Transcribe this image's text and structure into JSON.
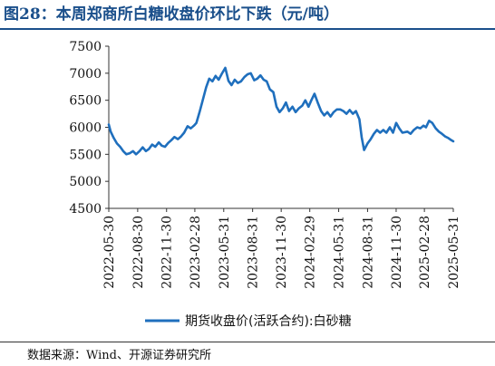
{
  "figure": {
    "title": "图28：本周郑商所白糖收盘价环比下跌（元/吨）",
    "source": "数据来源：Wind、开源证券研究所"
  },
  "colors": {
    "title": "#1a4f8b",
    "series": "#1f6fbd",
    "axis": "#333333"
  },
  "chart_data": {
    "type": "line",
    "title": "",
    "xlabel": "",
    "ylabel": "",
    "ylim": [
      4500,
      7500
    ],
    "yticks": [
      4500,
      5000,
      5500,
      6000,
      6500,
      7000,
      7500
    ],
    "ytick_labels": [
      "4500",
      "5000",
      "5500",
      "6000",
      "6500",
      "7000",
      "7500"
    ],
    "xlim": [
      "2022-05-30",
      "2025-05-31"
    ],
    "xtick_labels": [
      "2022-05-30",
      "2022-08-30",
      "2022-11-30",
      "2023-02-28",
      "2023-05-31",
      "2023-08-31",
      "2023-11-30",
      "2024-02-29",
      "2024-05-31",
      "2024-08-31",
      "2024-11-30",
      "2025-02-28",
      "2025-05-31"
    ],
    "grid": false,
    "legend_position": "bottom",
    "series": [
      {
        "name": "期货收盘价(活跃合约):白砂糖",
        "points": [
          [
            "2022-05-30",
            6050
          ],
          [
            "2022-06-05",
            5920
          ],
          [
            "2022-06-15",
            5800
          ],
          [
            "2022-06-25",
            5700
          ],
          [
            "2022-07-05",
            5640
          ],
          [
            "2022-07-15",
            5560
          ],
          [
            "2022-07-25",
            5500
          ],
          [
            "2022-08-05",
            5520
          ],
          [
            "2022-08-15",
            5560
          ],
          [
            "2022-08-25",
            5500
          ],
          [
            "2022-09-05",
            5560
          ],
          [
            "2022-09-15",
            5630
          ],
          [
            "2022-09-25",
            5560
          ],
          [
            "2022-10-05",
            5600
          ],
          [
            "2022-10-15",
            5680
          ],
          [
            "2022-10-25",
            5640
          ],
          [
            "2022-11-05",
            5720
          ],
          [
            "2022-11-15",
            5660
          ],
          [
            "2022-11-25",
            5640
          ],
          [
            "2022-12-05",
            5710
          ],
          [
            "2022-12-15",
            5760
          ],
          [
            "2022-12-25",
            5820
          ],
          [
            "2023-01-05",
            5780
          ],
          [
            "2023-01-15",
            5830
          ],
          [
            "2023-01-25",
            5900
          ],
          [
            "2023-02-05",
            6020
          ],
          [
            "2023-02-15",
            5980
          ],
          [
            "2023-02-25",
            6030
          ],
          [
            "2023-03-05",
            6080
          ],
          [
            "2023-03-15",
            6280
          ],
          [
            "2023-03-25",
            6500
          ],
          [
            "2023-04-05",
            6740
          ],
          [
            "2023-04-15",
            6900
          ],
          [
            "2023-04-25",
            6850
          ],
          [
            "2023-05-05",
            6950
          ],
          [
            "2023-05-15",
            6880
          ],
          [
            "2023-05-25",
            6990
          ],
          [
            "2023-06-05",
            7100
          ],
          [
            "2023-06-15",
            6860
          ],
          [
            "2023-06-25",
            6780
          ],
          [
            "2023-07-05",
            6880
          ],
          [
            "2023-07-15",
            6820
          ],
          [
            "2023-07-25",
            6850
          ],
          [
            "2023-08-05",
            6930
          ],
          [
            "2023-08-15",
            6980
          ],
          [
            "2023-08-25",
            7000
          ],
          [
            "2023-09-05",
            6870
          ],
          [
            "2023-09-15",
            6900
          ],
          [
            "2023-09-25",
            6960
          ],
          [
            "2023-10-05",
            6880
          ],
          [
            "2023-10-15",
            6850
          ],
          [
            "2023-10-25",
            6700
          ],
          [
            "2023-11-05",
            6650
          ],
          [
            "2023-11-15",
            6380
          ],
          [
            "2023-11-25",
            6280
          ],
          [
            "2023-12-05",
            6350
          ],
          [
            "2023-12-15",
            6460
          ],
          [
            "2023-12-25",
            6300
          ],
          [
            "2024-01-05",
            6380
          ],
          [
            "2024-01-15",
            6280
          ],
          [
            "2024-01-25",
            6350
          ],
          [
            "2024-02-05",
            6400
          ],
          [
            "2024-02-15",
            6500
          ],
          [
            "2024-02-25",
            6380
          ],
          [
            "2024-03-05",
            6500
          ],
          [
            "2024-03-15",
            6620
          ],
          [
            "2024-03-25",
            6460
          ],
          [
            "2024-04-05",
            6300
          ],
          [
            "2024-04-15",
            6220
          ],
          [
            "2024-04-25",
            6280
          ],
          [
            "2024-05-05",
            6200
          ],
          [
            "2024-05-15",
            6280
          ],
          [
            "2024-05-25",
            6330
          ],
          [
            "2024-06-05",
            6330
          ],
          [
            "2024-06-15",
            6300
          ],
          [
            "2024-06-25",
            6250
          ],
          [
            "2024-07-05",
            6320
          ],
          [
            "2024-07-15",
            6250
          ],
          [
            "2024-07-25",
            6300
          ],
          [
            "2024-08-05",
            6150
          ],
          [
            "2024-08-12",
            5820
          ],
          [
            "2024-08-20",
            5580
          ],
          [
            "2024-08-31",
            5700
          ],
          [
            "2024-09-10",
            5780
          ],
          [
            "2024-09-20",
            5880
          ],
          [
            "2024-09-30",
            5950
          ],
          [
            "2024-10-10",
            5900
          ],
          [
            "2024-10-20",
            5950
          ],
          [
            "2024-10-30",
            5900
          ],
          [
            "2024-11-10",
            6000
          ],
          [
            "2024-11-20",
            5900
          ],
          [
            "2024-11-30",
            6080
          ],
          [
            "2024-12-10",
            5980
          ],
          [
            "2024-12-20",
            5900
          ],
          [
            "2025-01-05",
            5920
          ],
          [
            "2025-01-15",
            5880
          ],
          [
            "2025-01-25",
            5950
          ],
          [
            "2025-02-05",
            6000
          ],
          [
            "2025-02-15",
            5980
          ],
          [
            "2025-02-25",
            6030
          ],
          [
            "2025-03-05",
            6000
          ],
          [
            "2025-03-15",
            6120
          ],
          [
            "2025-03-25",
            6080
          ],
          [
            "2025-04-05",
            5980
          ],
          [
            "2025-04-15",
            5920
          ],
          [
            "2025-04-25",
            5880
          ],
          [
            "2025-05-05",
            5830
          ],
          [
            "2025-05-15",
            5800
          ],
          [
            "2025-05-25",
            5760
          ],
          [
            "2025-05-31",
            5740
          ]
        ]
      }
    ]
  }
}
